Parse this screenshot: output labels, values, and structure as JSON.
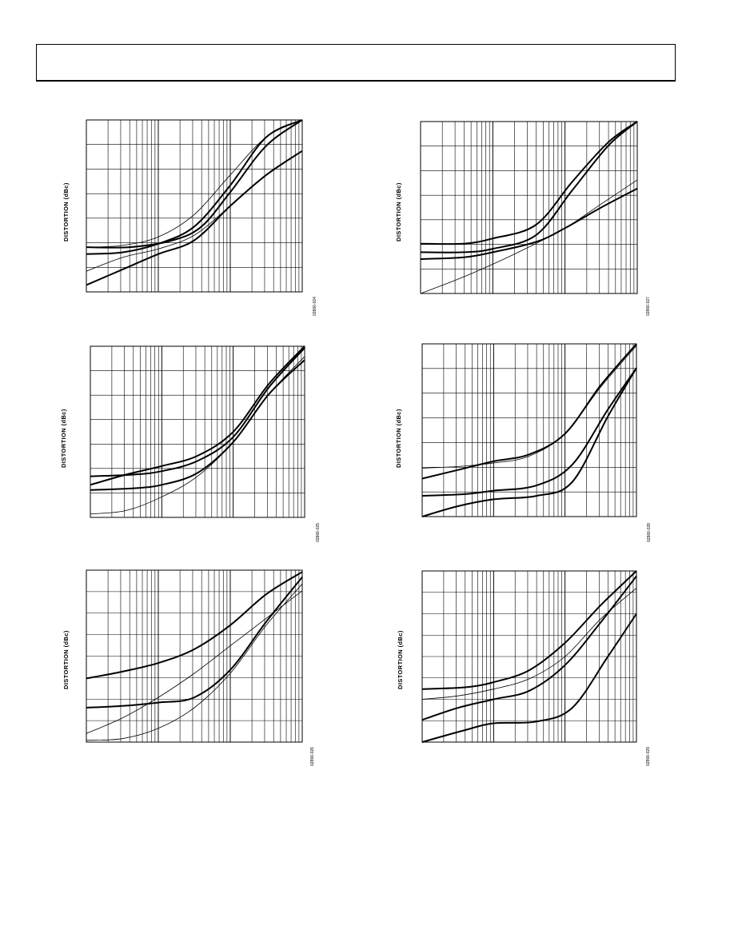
{
  "header": {
    "title": ""
  },
  "charts": [
    {
      "ylabel": "DISTORTION (dBc)",
      "figure_id": "02866-024"
    },
    {
      "ylabel": "DISTORTION (dBc)",
      "figure_id": "02866-027"
    },
    {
      "ylabel": "DISTORTION (dBc)",
      "figure_id": "02866-025"
    },
    {
      "ylabel": "DISTORTION (dBc)",
      "figure_id": "02866-028"
    },
    {
      "ylabel": "DISTORTION (dBc)",
      "figure_id": "02866-026"
    },
    {
      "ylabel": "DISTORTION (dBc)",
      "figure_id": "02866-029"
    }
  ],
  "chart_data": [
    {
      "type": "line",
      "title": "",
      "xlabel": "",
      "ylabel": "DISTORTION (dBc)",
      "x_scale": "log",
      "grid": true,
      "x_decades": 3,
      "y_divisions": 7,
      "series": [
        {
          "values": [
            [
              0.0,
              0.22
            ],
            [
              0.5,
              0.23
            ],
            [
              1.0,
              0.28
            ],
            [
              1.5,
              0.38
            ],
            [
              2.0,
              0.62
            ],
            [
              2.5,
              0.9
            ],
            [
              3.0,
              1.0
            ]
          ],
          "weight": "bold"
        },
        {
          "values": [
            [
              0.0,
              0.26
            ],
            [
              0.6,
              0.26
            ],
            [
              1.2,
              0.3
            ],
            [
              1.6,
              0.38
            ],
            [
              2.0,
              0.58
            ],
            [
              2.5,
              0.85
            ],
            [
              3.0,
              1.0
            ]
          ],
          "weight": "bold"
        },
        {
          "values": [
            [
              0.0,
              0.26
            ],
            [
              0.5,
              0.27
            ],
            [
              1.0,
              0.32
            ],
            [
              1.5,
              0.45
            ],
            [
              2.0,
              0.68
            ],
            [
              2.5,
              0.9
            ],
            [
              3.0,
              1.0
            ]
          ],
          "weight": "normal"
        },
        {
          "values": [
            [
              0.0,
              0.04
            ],
            [
              0.5,
              0.13
            ],
            [
              1.0,
              0.22
            ],
            [
              1.5,
              0.3
            ],
            [
              2.0,
              0.5
            ],
            [
              2.5,
              0.68
            ],
            [
              3.0,
              0.82
            ]
          ],
          "weight": "bold"
        },
        {
          "values": [
            [
              0.0,
              0.12
            ],
            [
              0.5,
              0.2
            ],
            [
              1.0,
              0.25
            ],
            [
              1.5,
              0.33
            ],
            [
              2.0,
              0.5
            ],
            [
              2.5,
              0.68
            ],
            [
              3.0,
              0.82
            ]
          ],
          "weight": "normal"
        }
      ]
    },
    {
      "type": "line",
      "title": "",
      "xlabel": "",
      "ylabel": "DISTORTION (dBc)",
      "x_scale": "log",
      "grid": true,
      "x_decades": 3,
      "y_divisions": 7,
      "series": [
        {
          "values": [
            [
              0.0,
              0.29
            ],
            [
              0.6,
              0.29
            ],
            [
              1.0,
              0.32
            ],
            [
              1.6,
              0.4
            ],
            [
              2.1,
              0.65
            ],
            [
              2.6,
              0.88
            ],
            [
              3.0,
              1.0
            ]
          ],
          "weight": "bold"
        },
        {
          "values": [
            [
              0.0,
              0.24
            ],
            [
              0.6,
              0.24
            ],
            [
              1.0,
              0.26
            ],
            [
              1.6,
              0.34
            ],
            [
              2.1,
              0.6
            ],
            [
              2.6,
              0.86
            ],
            [
              3.0,
              1.0
            ]
          ],
          "weight": "bold"
        },
        {
          "values": [
            [
              0.0,
              0.2
            ],
            [
              0.6,
              0.21
            ],
            [
              1.0,
              0.24
            ],
            [
              1.6,
              0.3
            ],
            [
              2.0,
              0.38
            ],
            [
              2.5,
              0.5
            ],
            [
              3.0,
              0.61
            ]
          ],
          "weight": "bold"
        },
        {
          "values": [
            [
              0.0,
              0.0
            ],
            [
              0.5,
              0.08
            ],
            [
              1.0,
              0.17
            ],
            [
              1.5,
              0.27
            ],
            [
              2.0,
              0.38
            ],
            [
              2.5,
              0.52
            ],
            [
              3.0,
              0.66
            ]
          ],
          "weight": "normal"
        }
      ]
    },
    {
      "type": "line",
      "title": "",
      "xlabel": "",
      "ylabel": "DISTORTION (dBc)",
      "x_scale": "log",
      "grid": true,
      "x_decades": 3,
      "y_divisions": 7,
      "series": [
        {
          "values": [
            [
              0.0,
              0.19
            ],
            [
              0.5,
              0.25
            ],
            [
              1.0,
              0.3
            ],
            [
              1.5,
              0.36
            ],
            [
              2.0,
              0.5
            ],
            [
              2.5,
              0.78
            ],
            [
              3.0,
              1.0
            ]
          ],
          "weight": "bold"
        },
        {
          "values": [
            [
              0.0,
              0.24
            ],
            [
              0.6,
              0.25
            ],
            [
              1.0,
              0.27
            ],
            [
              1.5,
              0.33
            ],
            [
              2.0,
              0.47
            ],
            [
              2.5,
              0.76
            ],
            [
              3.0,
              0.99
            ]
          ],
          "weight": "bold"
        },
        {
          "values": [
            [
              0.0,
              0.16
            ],
            [
              0.6,
              0.17
            ],
            [
              1.0,
              0.19
            ],
            [
              1.5,
              0.26
            ],
            [
              2.0,
              0.44
            ],
            [
              2.5,
              0.72
            ],
            [
              3.0,
              0.92
            ]
          ],
          "weight": "bold"
        },
        {
          "values": [
            [
              0.0,
              0.02
            ],
            [
              0.5,
              0.04
            ],
            [
              1.0,
              0.12
            ],
            [
              1.5,
              0.24
            ],
            [
              2.0,
              0.44
            ],
            [
              2.5,
              0.72
            ],
            [
              3.0,
              0.94
            ]
          ],
          "weight": "normal"
        }
      ]
    },
    {
      "type": "line",
      "title": "",
      "xlabel": "",
      "ylabel": "DISTORTION (dBc)",
      "x_scale": "log",
      "grid": true,
      "x_decades": 3,
      "y_divisions": 7,
      "series": [
        {
          "values": [
            [
              0.0,
              0.22
            ],
            [
              0.5,
              0.27
            ],
            [
              1.0,
              0.32
            ],
            [
              1.5,
              0.36
            ],
            [
              2.0,
              0.48
            ],
            [
              2.5,
              0.76
            ],
            [
              3.0,
              1.0
            ]
          ],
          "weight": "bold"
        },
        {
          "values": [
            [
              0.0,
              0.28
            ],
            [
              0.5,
              0.29
            ],
            [
              1.0,
              0.31
            ],
            [
              1.5,
              0.35
            ],
            [
              2.0,
              0.48
            ],
            [
              2.5,
              0.75
            ],
            [
              3.0,
              0.99
            ]
          ],
          "weight": "normal"
        },
        {
          "values": [
            [
              0.0,
              0.12
            ],
            [
              0.6,
              0.13
            ],
            [
              1.0,
              0.15
            ],
            [
              1.6,
              0.18
            ],
            [
              2.1,
              0.3
            ],
            [
              2.6,
              0.62
            ],
            [
              3.0,
              0.86
            ]
          ],
          "weight": "bold"
        },
        {
          "values": [
            [
              0.0,
              0.0
            ],
            [
              0.5,
              0.06
            ],
            [
              1.0,
              0.1
            ],
            [
              1.6,
              0.12
            ],
            [
              2.1,
              0.2
            ],
            [
              2.6,
              0.58
            ],
            [
              3.0,
              0.86
            ]
          ],
          "weight": "bold"
        }
      ]
    },
    {
      "type": "line",
      "title": "",
      "xlabel": "",
      "ylabel": "DISTORTION (dBc)",
      "x_scale": "log",
      "grid": true,
      "x_decades": 3,
      "y_divisions": 8,
      "series": [
        {
          "values": [
            [
              0.0,
              0.37
            ],
            [
              0.5,
              0.41
            ],
            [
              1.0,
              0.46
            ],
            [
              1.5,
              0.54
            ],
            [
              2.0,
              0.68
            ],
            [
              2.5,
              0.86
            ],
            [
              3.0,
              0.99
            ]
          ],
          "weight": "bold"
        },
        {
          "values": [
            [
              0.0,
              0.2
            ],
            [
              0.5,
              0.21
            ],
            [
              1.0,
              0.23
            ],
            [
              1.5,
              0.26
            ],
            [
              2.0,
              0.42
            ],
            [
              2.5,
              0.7
            ],
            [
              3.0,
              0.96
            ]
          ],
          "weight": "bold"
        },
        {
          "values": [
            [
              0.0,
              0.05
            ],
            [
              0.5,
              0.14
            ],
            [
              1.0,
              0.26
            ],
            [
              1.5,
              0.4
            ],
            [
              2.0,
              0.56
            ],
            [
              2.5,
              0.72
            ],
            [
              3.0,
              0.88
            ]
          ],
          "weight": "normal"
        },
        {
          "values": [
            [
              0.0,
              0.01
            ],
            [
              0.5,
              0.02
            ],
            [
              1.0,
              0.08
            ],
            [
              1.5,
              0.2
            ],
            [
              2.0,
              0.4
            ],
            [
              2.5,
              0.68
            ],
            [
              3.0,
              0.92
            ]
          ],
          "weight": "normal"
        }
      ]
    },
    {
      "type": "line",
      "title": "",
      "xlabel": "",
      "ylabel": "DISTORTION (dBc)",
      "x_scale": "log",
      "grid": true,
      "x_decades": 3,
      "y_divisions": 8,
      "series": [
        {
          "values": [
            [
              0.0,
              0.31
            ],
            [
              0.6,
              0.32
            ],
            [
              1.0,
              0.35
            ],
            [
              1.5,
              0.42
            ],
            [
              2.0,
              0.58
            ],
            [
              2.5,
              0.8
            ],
            [
              3.0,
              1.0
            ]
          ],
          "weight": "bold"
        },
        {
          "values": [
            [
              0.0,
              0.25
            ],
            [
              0.5,
              0.27
            ],
            [
              1.0,
              0.31
            ],
            [
              1.5,
              0.37
            ],
            [
              2.0,
              0.5
            ],
            [
              2.5,
              0.72
            ],
            [
              3.0,
              0.9
            ]
          ],
          "weight": "normal"
        },
        {
          "values": [
            [
              0.0,
              0.13
            ],
            [
              0.5,
              0.2
            ],
            [
              1.0,
              0.25
            ],
            [
              1.5,
              0.3
            ],
            [
              2.0,
              0.45
            ],
            [
              2.5,
              0.7
            ],
            [
              3.0,
              0.97
            ]
          ],
          "weight": "bold"
        },
        {
          "values": [
            [
              0.0,
              0.0
            ],
            [
              0.6,
              0.07
            ],
            [
              1.0,
              0.11
            ],
            [
              1.6,
              0.12
            ],
            [
              2.1,
              0.2
            ],
            [
              2.6,
              0.5
            ],
            [
              3.0,
              0.75
            ]
          ],
          "weight": "bold"
        }
      ]
    }
  ]
}
